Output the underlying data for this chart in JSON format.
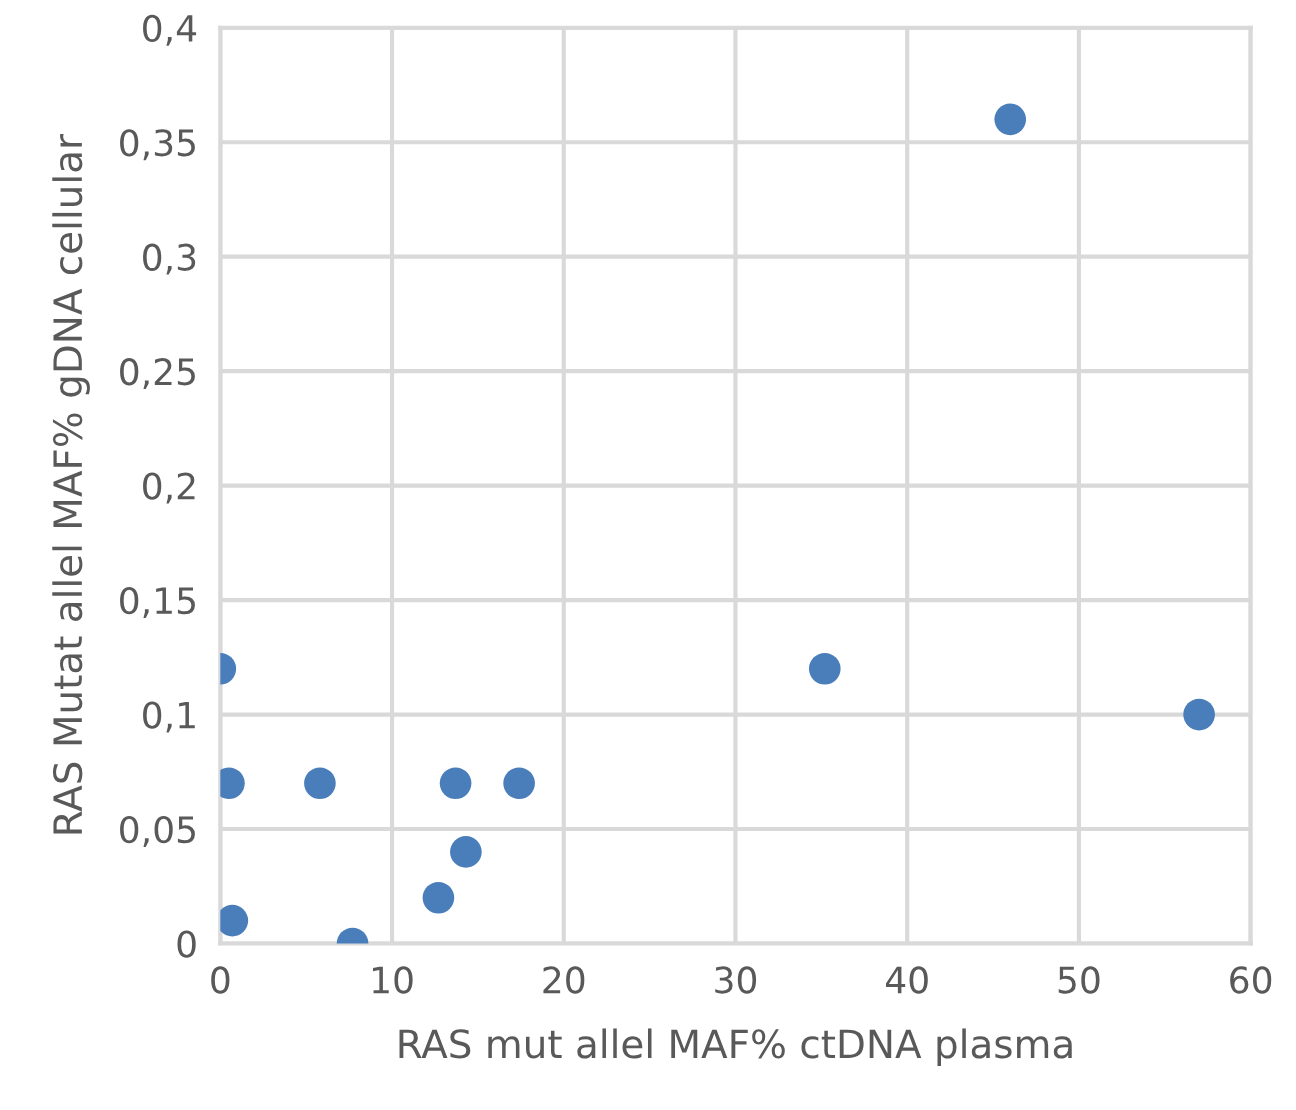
{
  "chart_data": {
    "type": "scatter",
    "xlabel": "RAS mut allel MAF% ctDNA plasma",
    "ylabel": "RAS Mutat allel MAF% gDNA cellular",
    "x": [
      0,
      0.5,
      0.7,
      5.8,
      7.7,
      12.7,
      13.7,
      14.3,
      17.4,
      35.2,
      57,
      46
    ],
    "values": [
      0.12,
      0.07,
      0.01,
      0.07,
      0,
      0.02,
      0.07,
      0.04,
      0.07,
      0.12,
      0.1,
      0.36
    ],
    "color": "#4a7ebb",
    "marker": "circle",
    "xlim": [
      0,
      60
    ],
    "xticks": [
      0,
      10,
      20,
      30,
      40,
      50,
      60
    ],
    "ylim": [
      0,
      0.4
    ],
    "yticks": [
      0,
      {
        "value": 0.05,
        "label": "0,05"
      },
      {
        "value": 0.1,
        "label": "0,1"
      },
      {
        "value": 0.15,
        "label": "0,15"
      },
      {
        "value": 0.2,
        "label": "0,2"
      },
      {
        "value": 0.25,
        "label": "0,25"
      },
      {
        "value": 0.3,
        "label": "0,3"
      },
      {
        "value": 0.35,
        "label": "0,35"
      },
      {
        "value": 0.4,
        "label": "0,4"
      }
    ],
    "grid": true
  }
}
